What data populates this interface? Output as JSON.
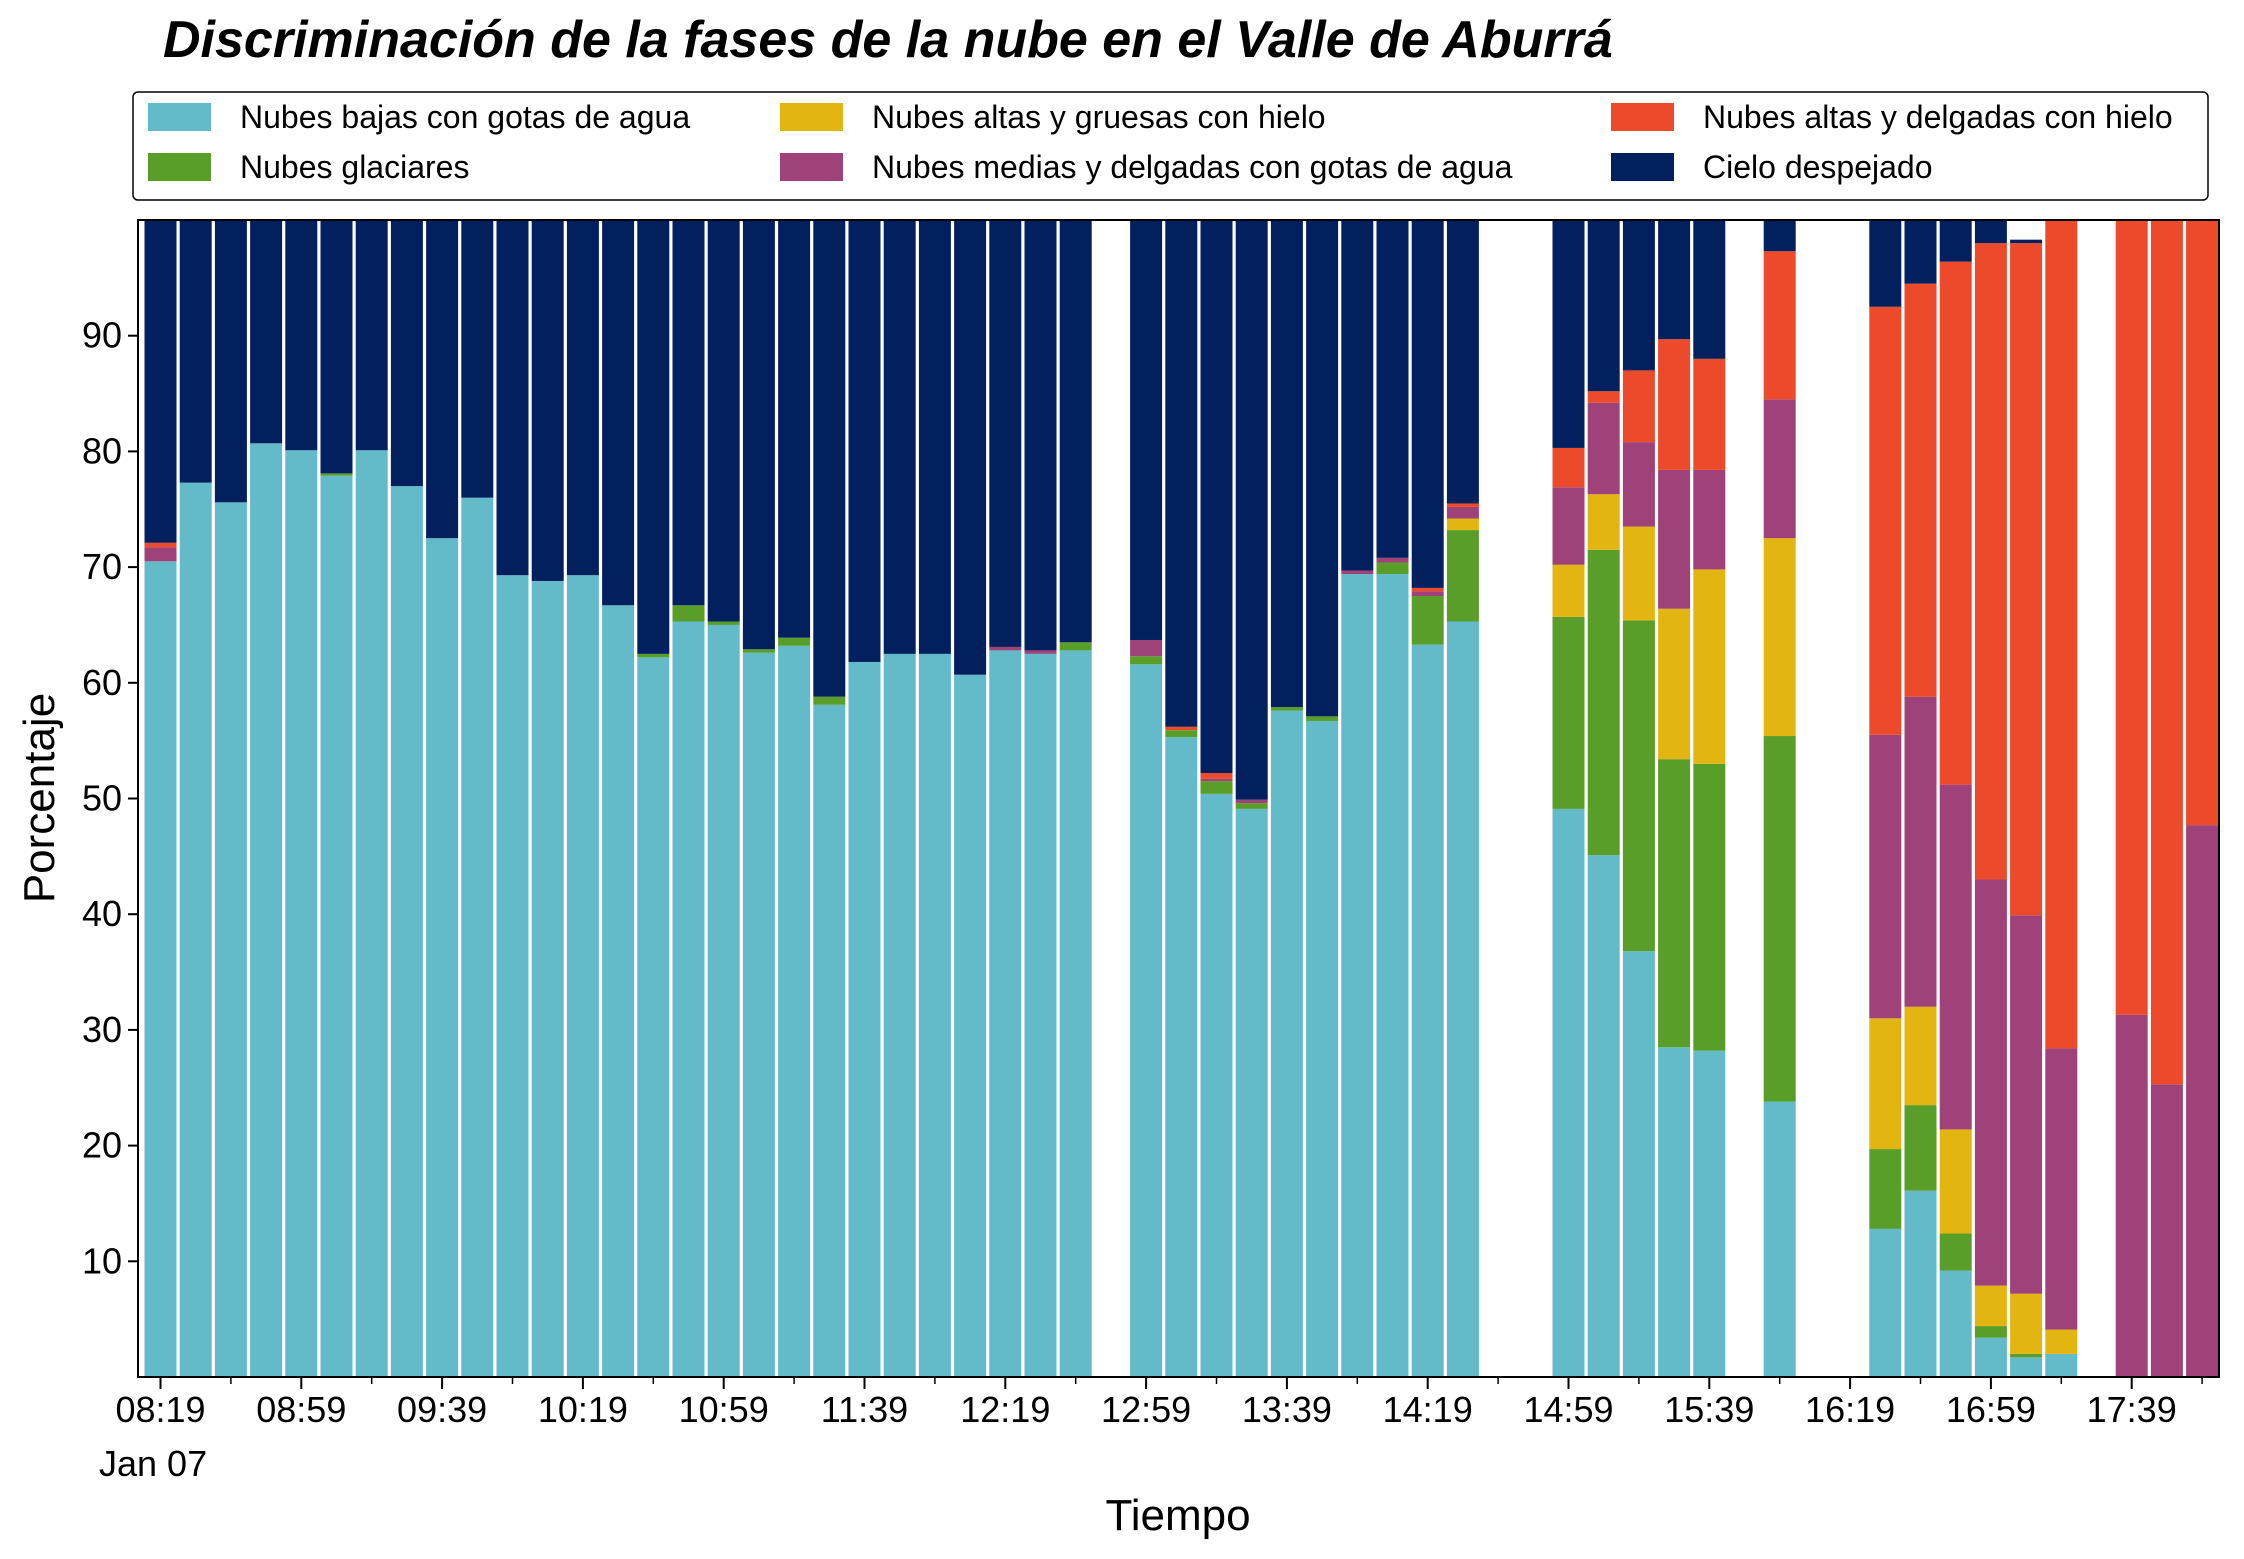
{
  "chart_data": {
    "type": "bar",
    "stacked": true,
    "title": "Discriminación de la fases de la nube en el Valle de Aburrá",
    "xlabel": "Tiempo",
    "ylabel": "Porcentaje",
    "ylim": [
      0,
      100
    ],
    "yticks": [
      10,
      20,
      30,
      40,
      50,
      60,
      70,
      80,
      90
    ],
    "xticks": [
      "08:19",
      "08:59",
      "09:39",
      "10:19",
      "10:59",
      "11:39",
      "12:19",
      "12:59",
      "13:39",
      "14:19",
      "14:59",
      "15:39",
      "16:19",
      "16:59",
      "17:39"
    ],
    "x_date_label": "Jan 07",
    "legend_position": "top",
    "grid": false,
    "x_start": "08:19",
    "x_step_minutes": 10,
    "series": [
      {
        "name": "Nubes bajas con gotas de agua",
        "color": "#63bbc9",
        "values": [
          70.5,
          77.3,
          75.6,
          80.7,
          80.1,
          77.9,
          80.1,
          77,
          72.5,
          76,
          69.3,
          68.8,
          69.3,
          66.7,
          62.2,
          65.3,
          65,
          62.6,
          63.2,
          58.1,
          61.8,
          62.5,
          62.5,
          60.7,
          62.8,
          62.5,
          62.8,
          null,
          61.6,
          55.3,
          50.4,
          49.1,
          57.6,
          56.7,
          69.4,
          69.4,
          63.3,
          65.3,
          null,
          null,
          49.1,
          45.1,
          36.8,
          28.5,
          28.2,
          null,
          23.8,
          null,
          null,
          12.8,
          16.1,
          9.2,
          3.4,
          1.7,
          2,
          null,
          0,
          0,
          0
        ]
      },
      {
        "name": "Nubes glaciares",
        "color": "#5a9e2a",
        "values": [
          0,
          0,
          0,
          0,
          0,
          0.2,
          0,
          0,
          0,
          0,
          0,
          0,
          0,
          0,
          0.3,
          1.4,
          0.3,
          0.3,
          0.7,
          0.7,
          0,
          0,
          0,
          0,
          0,
          0,
          0.7,
          null,
          0.7,
          0.6,
          1.1,
          0.5,
          0.3,
          0.4,
          0,
          1,
          4.2,
          7.9,
          null,
          null,
          16.6,
          26.4,
          28.6,
          24.9,
          24.8,
          null,
          31.6,
          null,
          null,
          6.9,
          7.4,
          3.2,
          1,
          0.3,
          0,
          null,
          0,
          0,
          0
        ]
      },
      {
        "name": "Nubes altas y gruesas con hielo",
        "color": "#e3b511",
        "values": [
          0,
          0,
          0,
          0,
          0,
          0,
          0,
          0,
          0,
          0,
          0,
          0,
          0,
          0,
          0,
          0,
          0,
          0,
          0,
          0,
          0,
          0,
          0,
          0,
          0,
          0,
          0,
          null,
          0,
          0,
          0,
          0,
          0,
          0,
          0,
          0,
          0,
          1,
          null,
          null,
          4.5,
          4.8,
          8.1,
          13,
          16.8,
          null,
          17.1,
          null,
          null,
          11.3,
          8.5,
          9,
          3.5,
          5.2,
          2.1,
          null,
          0,
          0,
          0
        ]
      },
      {
        "name": "Nubes medias y delgadas con gotas de agua",
        "color": "#a0427a",
        "values": [
          1.2,
          0,
          0,
          0,
          0,
          0,
          0,
          0,
          0,
          0,
          0,
          0,
          0,
          0,
          0,
          0,
          0,
          0,
          0,
          0,
          0,
          0,
          0,
          0,
          0.3,
          0.3,
          0,
          null,
          1.4,
          0,
          0.2,
          0.3,
          0,
          0,
          0.3,
          0.4,
          0.4,
          1,
          null,
          null,
          6.7,
          7.9,
          7.3,
          12,
          8.6,
          null,
          12,
          null,
          null,
          24.5,
          26.8,
          29.8,
          35.1,
          32.7,
          24.3,
          null,
          31.3,
          25.3,
          47.7
        ]
      },
      {
        "name": "Nubes altas y delgadas con hielo",
        "color": "#ec4a2b",
        "values": [
          0.4,
          0,
          0,
          0,
          0,
          0,
          0,
          0,
          0,
          0,
          0,
          0,
          0,
          0,
          0,
          0,
          0,
          0,
          0,
          0,
          0,
          0,
          0,
          0,
          0,
          0,
          0,
          null,
          0,
          0.3,
          0.5,
          0,
          0,
          0,
          0,
          0,
          0.3,
          0.3,
          null,
          null,
          3.4,
          1,
          6.2,
          11.3,
          9.6,
          null,
          12.8,
          null,
          null,
          37,
          35.7,
          45.2,
          55,
          58.1,
          71.6,
          null,
          68.7,
          74.7,
          52.3
        ]
      },
      {
        "name": "Cielo despejado",
        "color": "#03205e",
        "values": [
          27.9,
          22.7,
          24.4,
          19.3,
          19.9,
          21.9,
          19.9,
          23,
          27.5,
          24,
          30.7,
          31.2,
          30.7,
          33.3,
          37.5,
          33.3,
          34.7,
          37.1,
          36.1,
          41.2,
          38.2,
          37.5,
          37.5,
          39.3,
          36.9,
          37.2,
          36.5,
          null,
          36.3,
          43.8,
          47.8,
          50.1,
          42.1,
          42.9,
          30.3,
          29.2,
          31.8,
          24.5,
          null,
          null,
          19.7,
          14.8,
          13,
          10.3,
          12,
          null,
          2.7,
          null,
          null,
          7.5,
          5.5,
          3.6,
          2,
          0.3,
          0,
          null,
          0,
          0,
          0
        ]
      }
    ]
  }
}
